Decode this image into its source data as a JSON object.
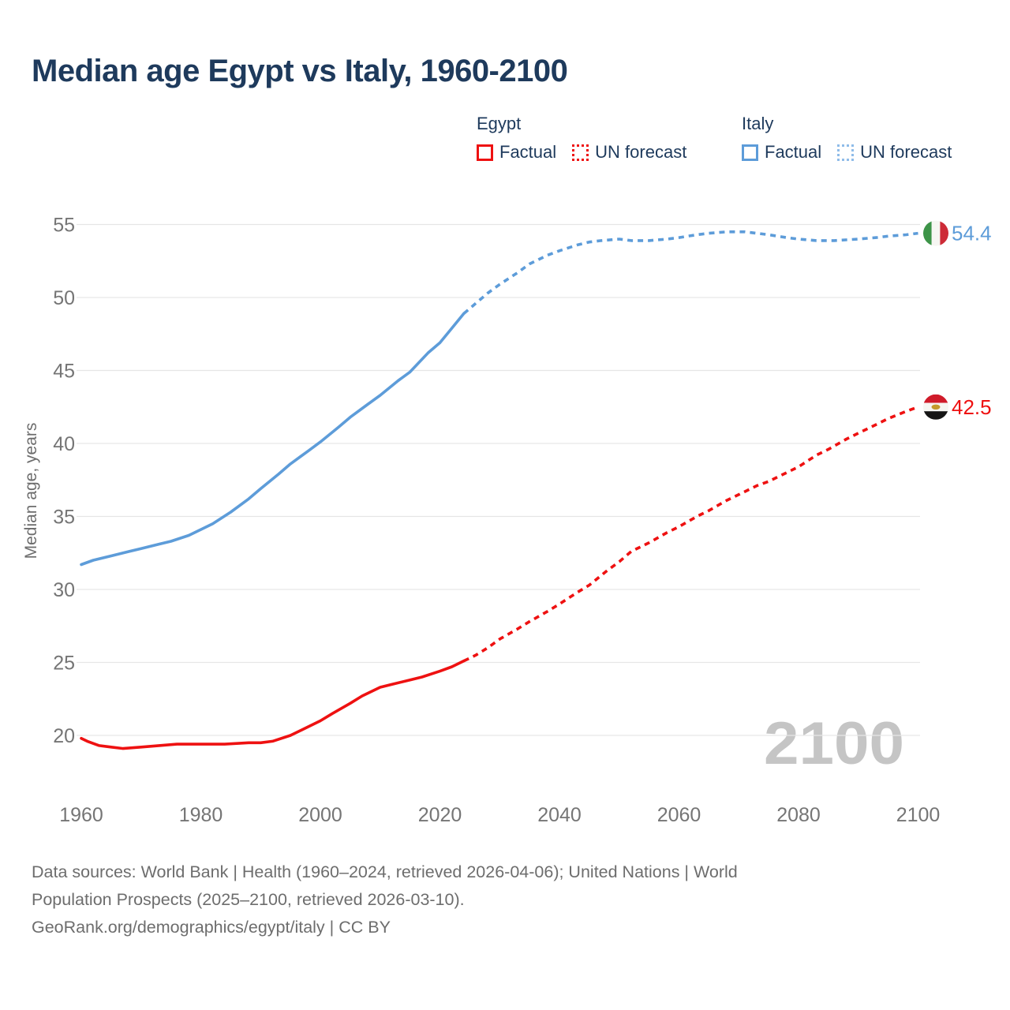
{
  "header": {
    "title": "Median age Egypt vs Italy, 1960-2100"
  },
  "legend": {
    "groups": [
      {
        "header": "Egypt",
        "items": [
          {
            "label": "Factual",
            "style": "solid",
            "color": "#ee1111"
          },
          {
            "label": "UN forecast",
            "style": "dotted",
            "color": "#ee1111"
          }
        ]
      },
      {
        "header": "Italy",
        "items": [
          {
            "label": "Factual",
            "style": "solid",
            "color": "#5d9cd9"
          },
          {
            "label": "UN forecast",
            "style": "dotted",
            "color": "#8fbce9"
          }
        ]
      }
    ]
  },
  "colors": {
    "title": "#1e3a5c",
    "axis_text": "#757575",
    "label_text": "#6d6d6d",
    "grid": "#e6e6e6",
    "watermark": "#c5c5c5"
  },
  "chart_data": {
    "type": "line",
    "title": "Median age Egypt vs Italy, 1960-2100",
    "xlabel": "",
    "ylabel": "Median age, years",
    "x_ticks": [
      1960,
      1980,
      2000,
      2020,
      2040,
      2060,
      2080,
      2100
    ],
    "y_ticks": [
      20,
      25,
      30,
      35,
      40,
      45,
      50,
      55
    ],
    "xlim": [
      1960,
      2100
    ],
    "ylim": [
      20,
      55
    ],
    "grid": "horizontal",
    "legend_position": "top",
    "forecast_start_year": 2024,
    "watermark": "2100",
    "series": [
      {
        "name": "Egypt",
        "color": "#ee1111",
        "forecast_color": "#ee1111",
        "end_label": "42.5",
        "flag": "egypt",
        "points": [
          [
            1960,
            19.8
          ],
          [
            1961,
            19.6
          ],
          [
            1963,
            19.3
          ],
          [
            1965,
            19.2
          ],
          [
            1967,
            19.1
          ],
          [
            1970,
            19.2
          ],
          [
            1973,
            19.3
          ],
          [
            1976,
            19.4
          ],
          [
            1980,
            19.4
          ],
          [
            1984,
            19.4
          ],
          [
            1988,
            19.5
          ],
          [
            1990,
            19.5
          ],
          [
            1992,
            19.6
          ],
          [
            1995,
            20.0
          ],
          [
            1997,
            20.4
          ],
          [
            2000,
            21.0
          ],
          [
            2002,
            21.5
          ],
          [
            2005,
            22.2
          ],
          [
            2007,
            22.7
          ],
          [
            2010,
            23.3
          ],
          [
            2012,
            23.5
          ],
          [
            2015,
            23.8
          ],
          [
            2017,
            24.0
          ],
          [
            2020,
            24.4
          ],
          [
            2022,
            24.7
          ],
          [
            2024,
            25.1
          ],
          [
            2026,
            25.5
          ],
          [
            2028,
            26.0
          ],
          [
            2030,
            26.6
          ],
          [
            2033,
            27.3
          ],
          [
            2035,
            27.8
          ],
          [
            2038,
            28.5
          ],
          [
            2040,
            29.0
          ],
          [
            2043,
            29.8
          ],
          [
            2045,
            30.3
          ],
          [
            2048,
            31.3
          ],
          [
            2050,
            31.9
          ],
          [
            2052,
            32.6
          ],
          [
            2055,
            33.2
          ],
          [
            2058,
            33.9
          ],
          [
            2060,
            34.3
          ],
          [
            2063,
            35.0
          ],
          [
            2065,
            35.4
          ],
          [
            2068,
            36.1
          ],
          [
            2070,
            36.5
          ],
          [
            2073,
            37.1
          ],
          [
            2075,
            37.4
          ],
          [
            2078,
            38.0
          ],
          [
            2080,
            38.4
          ],
          [
            2083,
            39.2
          ],
          [
            2085,
            39.6
          ],
          [
            2088,
            40.3
          ],
          [
            2090,
            40.7
          ],
          [
            2093,
            41.3
          ],
          [
            2095,
            41.7
          ],
          [
            2098,
            42.2
          ],
          [
            2100,
            42.5
          ]
        ]
      },
      {
        "name": "Italy",
        "color": "#5d9cd9",
        "forecast_color": "#5d9cd9",
        "end_label": "54.4",
        "flag": "italy",
        "points": [
          [
            1960,
            31.7
          ],
          [
            1962,
            32.0
          ],
          [
            1965,
            32.3
          ],
          [
            1968,
            32.6
          ],
          [
            1970,
            32.8
          ],
          [
            1973,
            33.1
          ],
          [
            1975,
            33.3
          ],
          [
            1978,
            33.7
          ],
          [
            1980,
            34.1
          ],
          [
            1982,
            34.5
          ],
          [
            1985,
            35.3
          ],
          [
            1988,
            36.2
          ],
          [
            1990,
            36.9
          ],
          [
            1993,
            37.9
          ],
          [
            1995,
            38.6
          ],
          [
            1998,
            39.5
          ],
          [
            2000,
            40.1
          ],
          [
            2003,
            41.1
          ],
          [
            2005,
            41.8
          ],
          [
            2008,
            42.7
          ],
          [
            2010,
            43.3
          ],
          [
            2013,
            44.3
          ],
          [
            2015,
            44.9
          ],
          [
            2018,
            46.2
          ],
          [
            2020,
            46.9
          ],
          [
            2022,
            47.9
          ],
          [
            2024,
            48.9
          ],
          [
            2026,
            49.6
          ],
          [
            2028,
            50.3
          ],
          [
            2030,
            50.9
          ],
          [
            2033,
            51.7
          ],
          [
            2035,
            52.3
          ],
          [
            2038,
            52.9
          ],
          [
            2040,
            53.2
          ],
          [
            2043,
            53.6
          ],
          [
            2045,
            53.8
          ],
          [
            2047,
            53.9
          ],
          [
            2050,
            54.0
          ],
          [
            2052,
            53.9
          ],
          [
            2055,
            53.9
          ],
          [
            2058,
            54.0
          ],
          [
            2060,
            54.1
          ],
          [
            2063,
            54.3
          ],
          [
            2065,
            54.4
          ],
          [
            2068,
            54.5
          ],
          [
            2071,
            54.5
          ],
          [
            2073,
            54.4
          ],
          [
            2075,
            54.3
          ],
          [
            2078,
            54.1
          ],
          [
            2080,
            54.0
          ],
          [
            2083,
            53.9
          ],
          [
            2086,
            53.9
          ],
          [
            2090,
            54.0
          ],
          [
            2093,
            54.1
          ],
          [
            2095,
            54.2
          ],
          [
            2098,
            54.3
          ],
          [
            2100,
            54.4
          ]
        ]
      }
    ]
  },
  "footer": {
    "lines": [
      "Data sources: World Bank | Health (1960–2024, retrieved 2026-04-06); United Nations | World",
      "Population Prospects (2025–2100, retrieved 2026-03-10).",
      "GeoRank.org/demographics/egypt/italy | CC BY"
    ]
  }
}
